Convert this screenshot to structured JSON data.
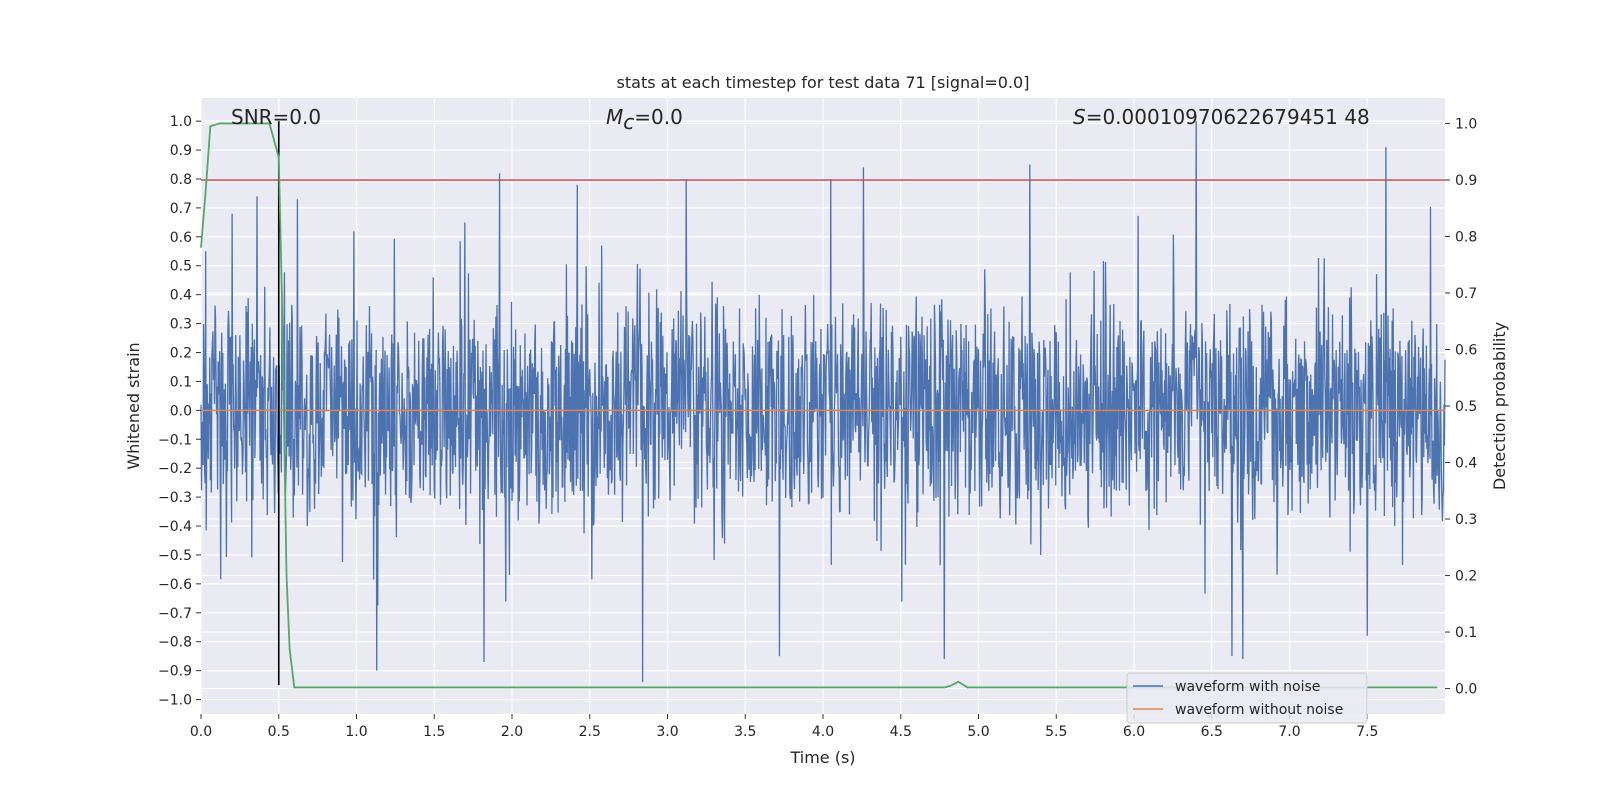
{
  "chart_data": {
    "type": "line",
    "title": "stats at each timestep for test data 71 [signal=0.0]",
    "xlabel": "Time (s)",
    "ylabel_left": "Whitened strain",
    "ylabel_right": "Detection probability",
    "xlim": [
      0.0,
      8.0
    ],
    "ylim_left": [
      -1.05,
      1.08
    ],
    "ylim_right": [
      -0.045,
      1.045
    ],
    "x_ticks": [
      "0.0",
      "0.5",
      "1.0",
      "1.5",
      "2.0",
      "2.5",
      "3.0",
      "3.5",
      "4.0",
      "4.5",
      "5.0",
      "5.5",
      "6.0",
      "6.5",
      "7.0",
      "7.5"
    ],
    "x_tick_values": [
      0.0,
      0.5,
      1.0,
      1.5,
      2.0,
      2.5,
      3.0,
      3.5,
      4.0,
      4.5,
      5.0,
      5.5,
      6.0,
      6.5,
      7.0,
      7.5
    ],
    "y_left_ticks": [
      "1.0",
      "0.9",
      "0.8",
      "0.7",
      "0.6",
      "0.5",
      "0.4",
      "0.3",
      "0.2",
      "0.1",
      "0.0",
      "−0.1",
      "−0.2",
      "−0.3",
      "−0.4",
      "−0.5",
      "−0.6",
      "−0.7",
      "−0.8",
      "−0.9",
      "−1.0"
    ],
    "y_left_tick_values": [
      1.0,
      0.9,
      0.8,
      0.7,
      0.6,
      0.5,
      0.4,
      0.3,
      0.2,
      0.1,
      0.0,
      -0.1,
      -0.2,
      -0.3,
      -0.4,
      -0.5,
      -0.6,
      -0.7,
      -0.8,
      -0.9,
      -1.0
    ],
    "y_right_ticks": [
      "1.0",
      "0.9",
      "0.8",
      "0.7",
      "0.6",
      "0.5",
      "0.4",
      "0.3",
      "0.2",
      "0.1",
      "0.0"
    ],
    "y_right_tick_values": [
      1.0,
      0.9,
      0.8,
      0.7,
      0.6,
      0.5,
      0.4,
      0.3,
      0.2,
      0.1,
      0.0
    ],
    "annotations": {
      "snr_text": "SNR=0.0",
      "mc_symbol": "M",
      "mc_sub": "c",
      "mc_value": "=0.0",
      "s_symbol": "S",
      "s_value": "=0.00010970622679451 48"
    },
    "threshold_right": 0.9,
    "vertical_marker_x": 0.5,
    "series": [
      {
        "name": "waveform with noise",
        "axis": "left",
        "color": "#4c72b0",
        "note": "dense whitened-noise trace, typical envelope approx ±0.4 with spikes to ~±0.9",
        "peaks": [
          {
            "x": 0.03,
            "y": 0.55
          },
          {
            "x": 0.2,
            "y": 0.68
          },
          {
            "x": 0.36,
            "y": 0.74
          },
          {
            "x": 0.62,
            "y": 0.73
          },
          {
            "x": 1.92,
            "y": 0.82
          },
          {
            "x": 2.42,
            "y": 0.78
          },
          {
            "x": 3.12,
            "y": 0.8
          },
          {
            "x": 4.05,
            "y": 0.8
          },
          {
            "x": 4.26,
            "y": 0.84
          },
          {
            "x": 5.33,
            "y": 0.85
          },
          {
            "x": 6.4,
            "y": 1.0
          },
          {
            "x": 7.62,
            "y": 0.91
          },
          {
            "x": 1.13,
            "y": -0.9
          },
          {
            "x": 1.82,
            "y": -0.87
          },
          {
            "x": 2.84,
            "y": -0.94
          },
          {
            "x": 3.72,
            "y": -0.85
          },
          {
            "x": 4.78,
            "y": -0.86
          },
          {
            "x": 6.63,
            "y": -0.85
          },
          {
            "x": 6.7,
            "y": -0.86
          },
          {
            "x": 7.5,
            "y": -0.78
          }
        ]
      },
      {
        "name": "waveform without noise",
        "axis": "left",
        "color": "#dd8452",
        "x": [
          0.0,
          8.0
        ],
        "y": [
          0.0,
          0.0
        ]
      },
      {
        "name": "detection probability",
        "axis": "right",
        "color": "#55a868",
        "x": [
          0.0,
          0.03,
          0.06,
          0.12,
          0.2,
          0.3,
          0.44,
          0.5,
          0.52,
          0.55,
          0.57,
          0.6,
          4.78,
          4.82,
          4.87,
          4.93,
          7.95
        ],
        "y": [
          0.78,
          0.88,
          0.995,
          1.0,
          1.0,
          1.0,
          1.0,
          0.94,
          0.7,
          0.2,
          0.07,
          0.002,
          0.002,
          0.005,
          0.012,
          0.002,
          0.002
        ]
      }
    ],
    "legend": [
      {
        "label": "waveform with noise",
        "color": "#4c72b0"
      },
      {
        "label": "waveform without noise",
        "color": "#dd8452"
      }
    ],
    "legend_position": "lower-right",
    "grid": true,
    "colors": {
      "background": "#eaeaf2",
      "grid": "#ffffff",
      "threshold": "#c44e52",
      "marker": "#000000"
    }
  }
}
